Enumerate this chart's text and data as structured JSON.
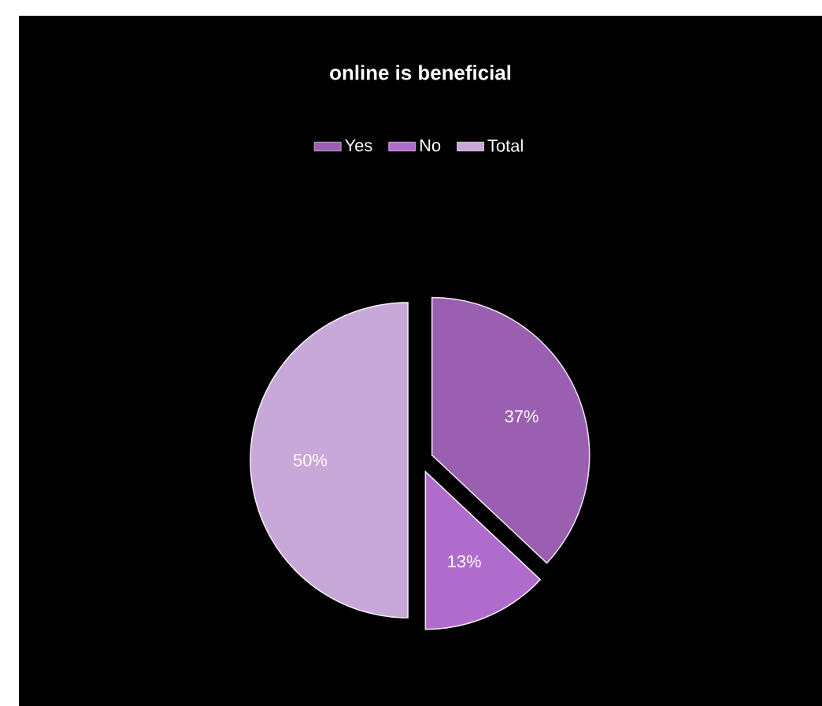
{
  "chart_data": {
    "type": "pie",
    "title": "online is beneficial",
    "categories": [
      "Yes",
      "No",
      "Total"
    ],
    "values": [
      37,
      13,
      50
    ],
    "colors": [
      "#9a5fb0",
      "#b06ccc",
      "#c8a8d8"
    ],
    "value_labels": [
      "37%",
      "13%",
      "50%"
    ],
    "legend": "top"
  }
}
